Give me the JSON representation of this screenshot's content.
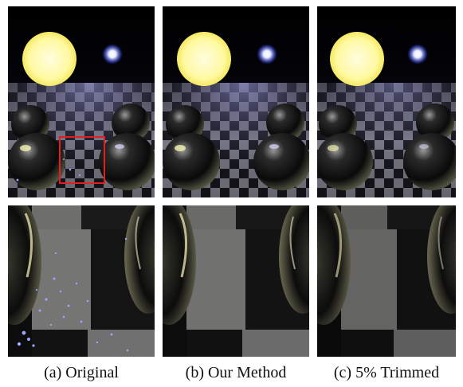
{
  "figure": {
    "captions": [
      "(a) Original",
      "(b) Our Method",
      "(c) 5% Trimmed"
    ]
  },
  "colors": {
    "light_large": "#fffdb8",
    "light_small": "#ffffff",
    "highlight_box": "#e02020",
    "firefly": "#9aa6ff"
  }
}
